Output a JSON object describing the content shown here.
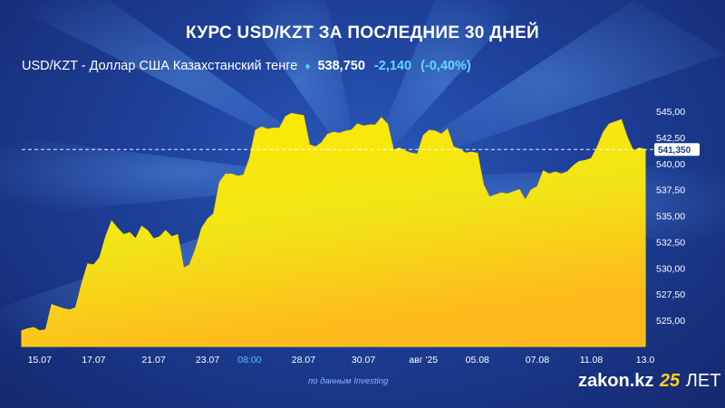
{
  "title": "КУРС USD/KZT ЗА ПОСЛЕДНИЕ 30 ДНЕЙ",
  "quote": {
    "pair_label": "USD/KZT - Доллар США Казахстанский тенге",
    "price": "538,750",
    "change": "-2,140",
    "change_pct": "(-0,40%)",
    "colors": {
      "change": "#5fd8ff",
      "diamond": "#3bd0ff"
    }
  },
  "source": "по данным Investing",
  "logo": {
    "prefix": "zakon.kz",
    "num": "25",
    "suffix": "ЛЕТ",
    "accent": "#ffd21a"
  },
  "chart_data": {
    "type": "area",
    "title": "",
    "xlabel": "",
    "ylabel": "",
    "ylim": [
      522.5,
      547
    ],
    "grid": false,
    "y_axis_side": "right",
    "y_ticks": [
      525,
      527.5,
      530,
      532.5,
      535,
      537.5,
      540,
      542.5,
      545
    ],
    "y_tick_labels": [
      "525,00",
      "527,50",
      "530,00",
      "532,50",
      "535,00",
      "537,50",
      "540,00",
      "542,50",
      "545,00"
    ],
    "x_tick_labels": [
      {
        "label": "15.07",
        "index": 3
      },
      {
        "label": "17.07",
        "index": 12
      },
      {
        "label": "21.07",
        "index": 22
      },
      {
        "label": "23.07",
        "index": 31
      },
      {
        "label": "08:00",
        "index": 38
      },
      {
        "label": "28.07",
        "index": 47
      },
      {
        "label": "30.07",
        "index": 57
      },
      {
        "label": "авг '25",
        "index": 67
      },
      {
        "label": "05.08",
        "index": 76
      },
      {
        "label": "07.08",
        "index": 86
      },
      {
        "label": "11.08",
        "index": 95
      },
      {
        "label": "13.0",
        "index": 104
      }
    ],
    "highlight_tick": "08:00",
    "last_value": 541.35,
    "last_value_label": "541,350",
    "fill_colors": [
      "#ffea00",
      "#f2e516",
      "#ffb81c"
    ],
    "values": [
      524.0,
      524.2,
      524.3,
      524.0,
      524.1,
      526.5,
      526.3,
      526.1,
      526.0,
      526.2,
      528.5,
      530.4,
      530.3,
      531.0,
      533.0,
      534.5,
      533.8,
      533.2,
      533.4,
      532.8,
      534.0,
      533.6,
      532.8,
      533.0,
      533.6,
      533.0,
      533.2,
      530.0,
      530.3,
      531.8,
      533.8,
      534.7,
      535.2,
      538.2,
      539.0,
      539.0,
      538.8,
      538.9,
      540.5,
      543.2,
      543.5,
      543.3,
      543.4,
      543.4,
      544.5,
      544.8,
      544.7,
      544.6,
      541.8,
      541.6,
      542.0,
      542.8,
      543.0,
      542.9,
      543.1,
      543.2,
      543.8,
      543.6,
      543.7,
      543.7,
      544.4,
      543.8,
      541.3,
      541.5,
      541.2,
      541.0,
      540.9,
      542.7,
      543.2,
      543.1,
      542.8,
      543.3,
      541.6,
      541.4,
      541.0,
      541.1,
      541.0,
      538.0,
      536.8,
      537.0,
      537.2,
      537.1,
      537.3,
      537.5,
      536.5,
      537.5,
      537.8,
      539.3,
      539.0,
      539.2,
      539.0,
      539.2,
      539.8,
      540.2,
      540.3,
      540.5,
      541.6,
      543.0,
      543.8,
      544.0,
      544.2,
      542.5,
      541.2,
      541.5,
      541.35
    ]
  }
}
